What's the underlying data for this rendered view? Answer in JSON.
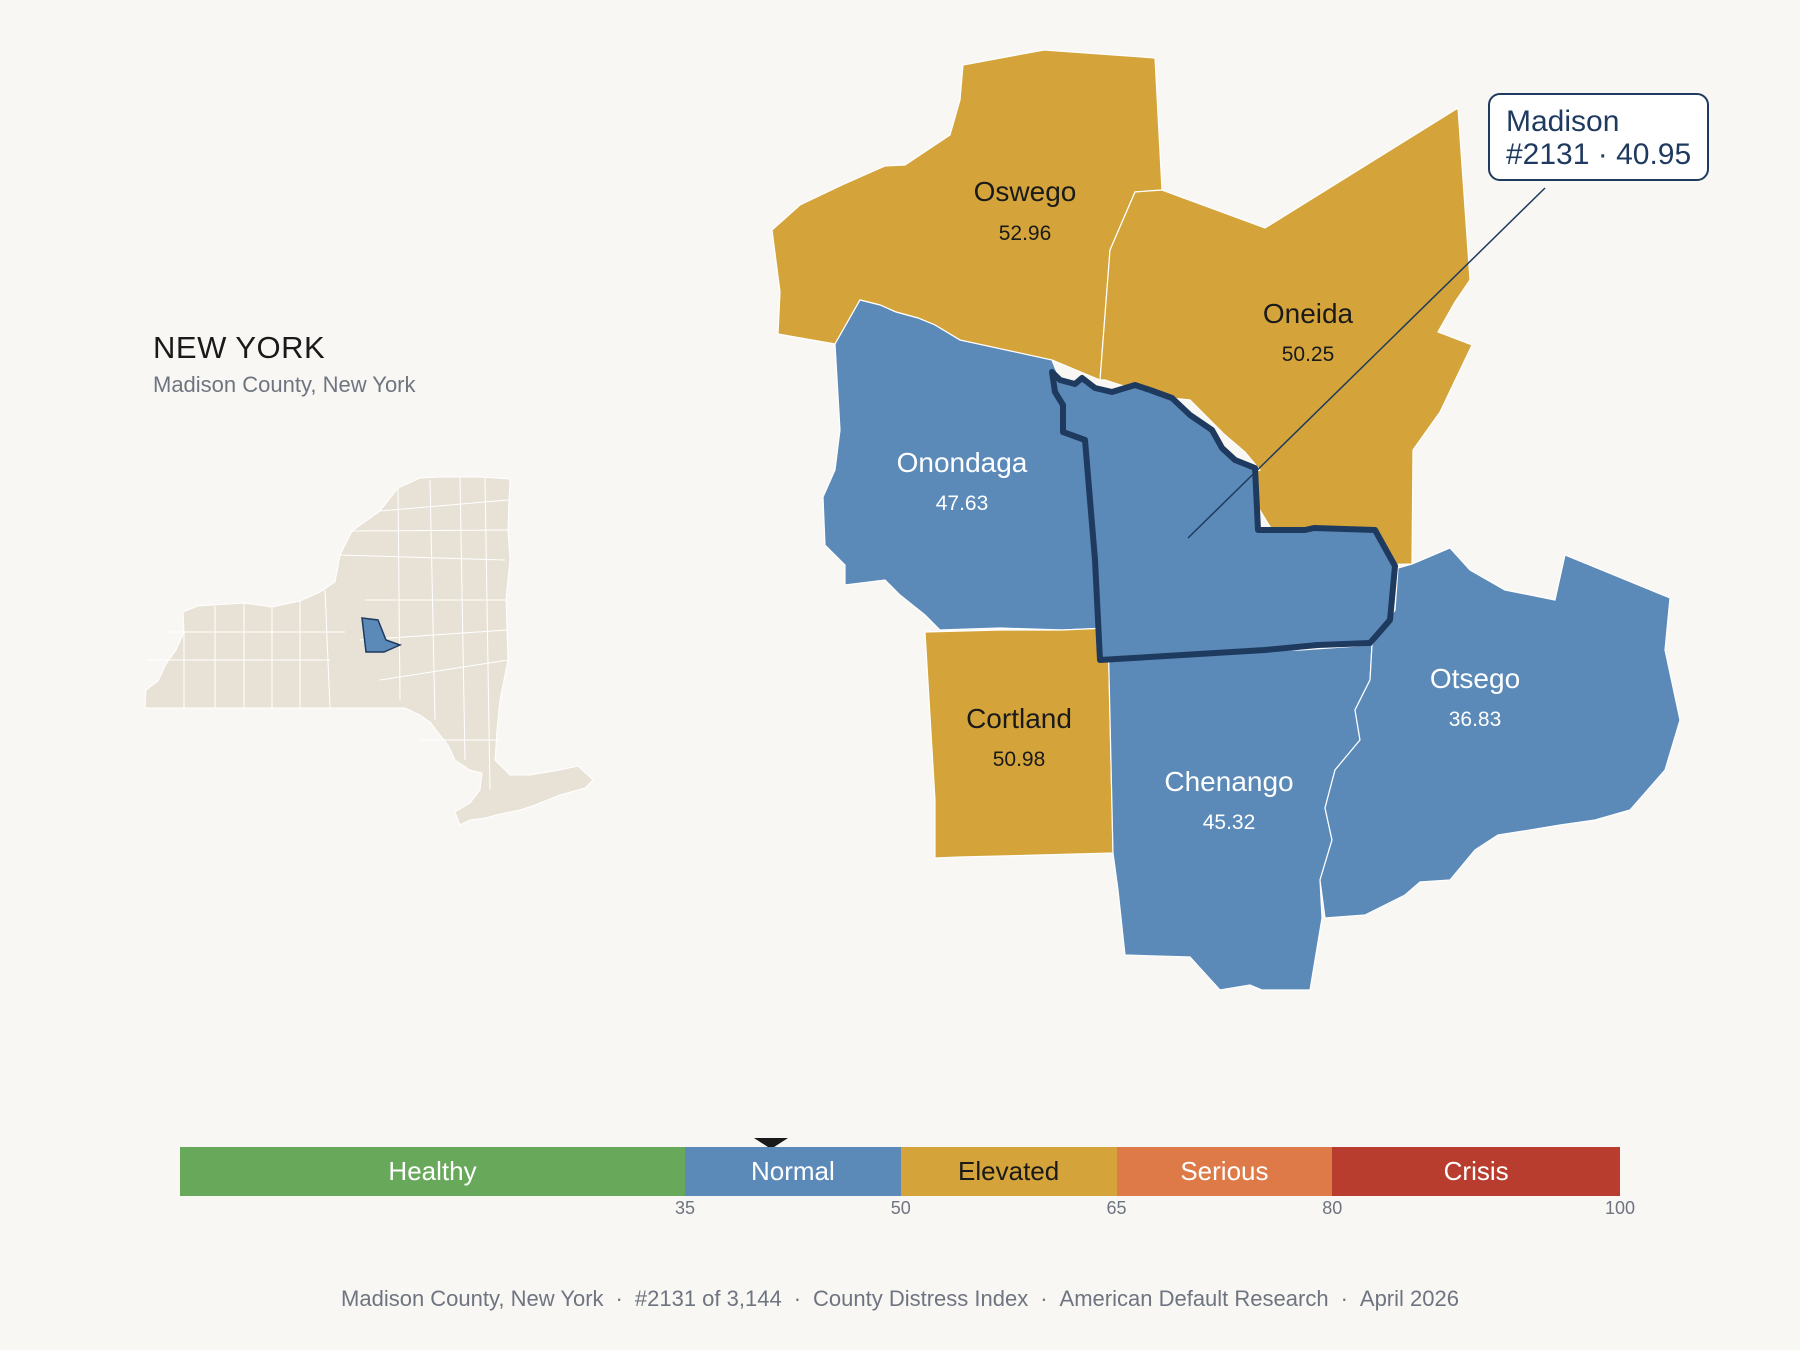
{
  "state": {
    "title": "NEW YORK",
    "subtitle": "Madison County, New York"
  },
  "callout": {
    "name": "Madison",
    "detail": "#2131 · 40.95"
  },
  "counties": [
    {
      "name": "Oswego",
      "value": "52.96",
      "category": "Elevated",
      "fill": "#d4a43a",
      "text": "#1a1a1a"
    },
    {
      "name": "Oneida",
      "value": "50.25",
      "category": "Elevated",
      "fill": "#d4a43a",
      "text": "#1a1a1a"
    },
    {
      "name": "Onondaga",
      "value": "47.63",
      "category": "Normal",
      "fill": "#5b8ab9",
      "text": "#ffffff"
    },
    {
      "name": "Cortland",
      "value": "50.98",
      "category": "Elevated",
      "fill": "#d4a43a",
      "text": "#1a1a1a"
    },
    {
      "name": "Chenango",
      "value": "45.32",
      "category": "Normal",
      "fill": "#5b8ab9",
      "text": "#ffffff"
    },
    {
      "name": "Otsego",
      "value": "36.83",
      "category": "Normal",
      "fill": "#5b8ab9",
      "text": "#ffffff"
    },
    {
      "name": "Madison",
      "value": "40.95",
      "category": "Normal",
      "fill": "#5b8ab9",
      "text": "#ffffff"
    }
  ],
  "legend": {
    "segments": [
      {
        "label": "Healthy",
        "from": 0,
        "to": 35,
        "color": "#68a85a",
        "text": "#ffffff"
      },
      {
        "label": "Normal",
        "from": 35,
        "to": 50,
        "color": "#5b8ab9",
        "text": "#ffffff"
      },
      {
        "label": "Elevated",
        "from": 50,
        "to": 65,
        "color": "#d4a43a",
        "text": "#1a1a1a"
      },
      {
        "label": "Serious",
        "from": 65,
        "to": 80,
        "color": "#dd7a48",
        "text": "#ffffff"
      },
      {
        "label": "Crisis",
        "from": 80,
        "to": 100,
        "color": "#b93d2e",
        "text": "#ffffff"
      }
    ],
    "ticks": [
      "35",
      "50",
      "65",
      "80",
      "100"
    ],
    "pointer_value": 40.95
  },
  "footer": {
    "items": [
      "Madison County, New York",
      "#2131 of 3,144",
      "County Distress Index",
      "American Default Research",
      "April 2026"
    ],
    "separator": "·"
  },
  "colors": {
    "highlight_border": "#1f3a5f",
    "inset_land": "#e8e2d6",
    "inset_highlight": "#5b8ab9",
    "background": "#f9f7f3"
  }
}
